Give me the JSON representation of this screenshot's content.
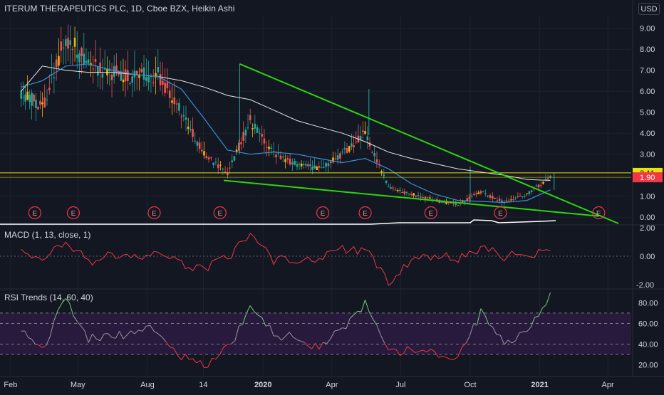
{
  "header": {
    "symbol_title": "ITERUM THERAPEUTICS PLC, 1D, Cboe BZX, Heikin Ashi",
    "currency_button": "USD"
  },
  "colors": {
    "background": "#131722",
    "grid": "#1e222d",
    "trendline": "#2bd60b",
    "candle_up": "#26a69a",
    "candle_down": "#ef5350",
    "candle_accent": "#f7b500",
    "ma_fast": "#3a8ed6",
    "ma_slow": "#e6e6e6",
    "price_level_line": "#e8e10a",
    "earnings_marker": "#f23645",
    "macd_line": "#f23645",
    "rsi_up": "#7fc47f",
    "rsi_mid": "#9598a1",
    "rsi_down": "#f23645",
    "rsi_band": "#2a1b3f"
  },
  "panes": {
    "macd_label": "MACD (1, 13, close, 1)",
    "rsi_label": "RSI Trends (14, 60, 40)"
  },
  "price_badges": {
    "current": "2.11",
    "level": "1.90"
  },
  "earnings_markers": [
    "E",
    "E",
    "E",
    "E",
    "E",
    "E",
    "E",
    "E",
    "E"
  ],
  "chart_data": [
    {
      "type": "candlestick",
      "title": "ITERUM THERAPEUTICS PLC, 1D, Cboe BZX, Heikin Ashi",
      "y_ticks": [
        "9.00",
        "8.00",
        "7.00",
        "6.00",
        "5.00",
        "4.00",
        "3.00",
        "2.00",
        "1.00",
        "0.00"
      ],
      "ylim": [
        -0.3,
        9.6
      ],
      "x_ticks": [
        "Feb",
        "May",
        "Aug",
        "14",
        "2020",
        "Apr",
        "Jul",
        "Oct",
        "2021",
        "Apr"
      ],
      "price_series": {
        "x": [
          "2019-02",
          "2019-03",
          "2019-04",
          "2019-05",
          "2019-06",
          "2019-07",
          "2019-08",
          "2019-09",
          "2019-10",
          "2019-11",
          "2019-12",
          "2020-01",
          "2020-02",
          "2020-03",
          "2020-04",
          "2020-05",
          "2020-06",
          "2020-07",
          "2020-08",
          "2020-09",
          "2020-10",
          "2020-11",
          "2020-12",
          "2021-01"
        ],
        "y": [
          6.0,
          5.2,
          8.6,
          7.3,
          6.9,
          6.7,
          6.8,
          5.0,
          3.0,
          2.1,
          4.6,
          3.0,
          2.5,
          2.3,
          3.0,
          4.0,
          1.4,
          1.1,
          0.8,
          0.6,
          1.2,
          0.7,
          1.1,
          1.9
        ]
      },
      "ma_fast": [
        6.2,
        6.5,
        7.2,
        7.3,
        7.0,
        6.8,
        6.7,
        6.1,
        4.7,
        3.2,
        3.0,
        3.1,
        3.0,
        2.8,
        2.6,
        2.8,
        2.3,
        1.6,
        1.1,
        0.8,
        0.75,
        0.7,
        0.8,
        1.3
      ],
      "ma_slow": [
        6.0,
        7.2,
        7.0,
        6.9,
        6.9,
        6.8,
        6.7,
        6.5,
        6.2,
        5.8,
        5.6,
        5.1,
        4.6,
        4.3,
        4.0,
        3.6,
        3.1,
        2.8,
        2.55,
        2.3,
        2.15,
        2.0,
        1.8,
        1.75
      ],
      "trendlines": [
        {
          "from": [
            "2019-12-01",
            7.3
          ],
          "to": [
            "2021-04-15",
            -0.3
          ]
        },
        {
          "from": [
            "2019-11-10",
            1.75
          ],
          "to": [
            "2021-03-20",
            0.05
          ]
        }
      ],
      "horizontal_levels": [
        2.11,
        1.9
      ]
    },
    {
      "type": "line",
      "title": "MACD (1, 13, close, 1)",
      "y_ticks": [
        "2.00",
        "0.00",
        "-2.00"
      ],
      "ylim": [
        -2.2,
        2.1
      ],
      "x": [
        "2019-02",
        "2019-03",
        "2019-04",
        "2019-05",
        "2019-06",
        "2019-07",
        "2019-08",
        "2019-09",
        "2019-10",
        "2019-11",
        "2019-12",
        "2020-01",
        "2020-02",
        "2020-03",
        "2020-04",
        "2020-05",
        "2020-06",
        "2020-07",
        "2020-08",
        "2020-09",
        "2020-10",
        "2020-11",
        "2020-12",
        "2021-01"
      ],
      "values": [
        0.2,
        -0.5,
        1.2,
        -0.4,
        0.1,
        -0.2,
        0.3,
        -0.6,
        -0.8,
        -0.2,
        1.6,
        -0.3,
        -0.2,
        -0.1,
        0.5,
        0.4,
        -1.8,
        -0.3,
        -0.1,
        -0.1,
        0.6,
        0.0,
        0.1,
        0.6
      ]
    },
    {
      "type": "line",
      "title": "RSI Trends (14, 60, 40)",
      "y_ticks": [
        "80.00",
        "60.00",
        "40.00",
        "20.00"
      ],
      "ylim": [
        10,
        92
      ],
      "bands": [
        70,
        60,
        40,
        30
      ],
      "x": [
        "2019-02",
        "2019-03",
        "2019-04",
        "2019-05",
        "2019-06",
        "2019-07",
        "2019-08",
        "2019-09",
        "2019-10",
        "2019-11",
        "2019-12",
        "2020-01",
        "2020-02",
        "2020-03",
        "2020-04",
        "2020-05",
        "2020-06",
        "2020-07",
        "2020-08",
        "2020-09",
        "2020-10",
        "2020-11",
        "2020-12",
        "2021-01"
      ],
      "values": [
        52,
        35,
        85,
        45,
        48,
        50,
        55,
        28,
        18,
        35,
        75,
        50,
        45,
        38,
        55,
        78,
        30,
        35,
        30,
        27,
        70,
        40,
        55,
        88
      ]
    }
  ]
}
